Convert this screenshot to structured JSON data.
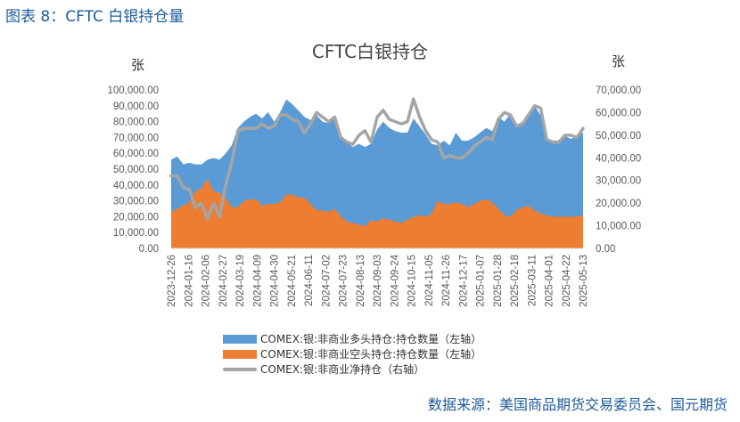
{
  "figure_label": "图表 8：CFTC 白银持仓量",
  "source_text": "数据来源：美国商品期货交易委员会、国元期货",
  "colors": {
    "long": "#5b9bd5",
    "short": "#ed7d31",
    "net": "#a5a5a5",
    "title": "#1f5a9a"
  },
  "chart_data": {
    "type": "area",
    "title": "CFTC白银持仓",
    "left_unit": "张",
    "right_unit": "张",
    "grid": false,
    "legend_position": "bottom",
    "y_left_ticks": [
      "100,000.00",
      "90,000.00",
      "80,000.00",
      "70,000.00",
      "60,000.00",
      "50,000.00",
      "40,000.00",
      "30,000.00",
      "20,000.00",
      "10,000.00",
      "0.00"
    ],
    "y_right_ticks": [
      "70,000.00",
      "60,000.00",
      "50,000.00",
      "40,000.00",
      "30,000.00",
      "20,000.00",
      "10,000.00",
      "0.00"
    ],
    "y_left_lim": [
      0,
      100000
    ],
    "y_right_lim": [
      0,
      70000
    ],
    "x_tick_labels": [
      "2023-12-26",
      "2024-01-16",
      "2024-02-06",
      "2024-02-27",
      "2024-03-19",
      "2024-04-09",
      "2024-04-30",
      "2024-05-21",
      "2024-06-11",
      "2024-07-02",
      "2024-07-23",
      "2024-08-13",
      "2024-09-03",
      "2024-09-24",
      "2024-10-15",
      "2024-11-05",
      "2024-11-26",
      "2024-12-17",
      "2025-01-07",
      "2025-01-28",
      "2025-02-18",
      "2025-03-11",
      "2025-04-01",
      "2025-04-22",
      "2025-05-13"
    ],
    "series": [
      {
        "name": "COMEX:银:非商业多头持仓:持仓数量（左轴）",
        "axis": "left",
        "values": [
          56000,
          58000,
          53000,
          54000,
          53000,
          53000,
          56000,
          57000,
          56000,
          60000,
          65000,
          76000,
          80000,
          83000,
          85000,
          82000,
          86000,
          80000,
          86000,
          94000,
          91000,
          87000,
          83000,
          81000,
          84000,
          80000,
          79000,
          83000,
          70000,
          67000,
          64000,
          66000,
          64000,
          66000,
          75000,
          80000,
          76000,
          74000,
          73000,
          73000,
          82000,
          77000,
          72000,
          66000,
          65000,
          68000,
          65000,
          73000,
          68000,
          68000,
          70000,
          73000,
          76000,
          74000,
          83000,
          80000,
          85000,
          78000,
          80000,
          85000,
          90000,
          84000,
          70000,
          66000,
          67000,
          71000,
          69000,
          71000,
          73000
        ]
      },
      {
        "name": "COMEX:银:非商业空头持仓:持仓数量（左轴）",
        "axis": "left",
        "values": [
          23000,
          25000,
          27000,
          29000,
          36000,
          38000,
          44000,
          36000,
          35000,
          32000,
          26000,
          26000,
          30000,
          31000,
          31000,
          27000,
          28000,
          28000,
          29000,
          34000,
          34000,
          32000,
          32000,
          28000,
          24000,
          24000,
          23000,
          25000,
          20000,
          17000,
          16000,
          15000,
          14000,
          18000,
          17000,
          19000,
          18000,
          17000,
          16000,
          18000,
          20000,
          21000,
          20000,
          22000,
          30000,
          28000,
          28000,
          29000,
          28000,
          26000,
          28000,
          30000,
          31000,
          29000,
          25000,
          21000,
          20000,
          24000,
          26000,
          27000,
          24000,
          22000,
          21000,
          20000,
          20000,
          20000,
          20000,
          20000,
          21000
        ]
      },
      {
        "name": "COMEX:银:非商业净持仓（右轴）",
        "axis": "right",
        "values": [
          32000,
          32000,
          27000,
          26000,
          18000,
          20000,
          13000,
          20000,
          14000,
          28000,
          38000,
          52000,
          53000,
          53000,
          53000,
          55000,
          53000,
          54000,
          59000,
          59000,
          57000,
          56000,
          51000,
          55000,
          60000,
          58000,
          56000,
          58000,
          49000,
          47000,
          46000,
          50000,
          52000,
          47000,
          58000,
          61000,
          57000,
          56000,
          55000,
          56000,
          66000,
          58000,
          52000,
          48000,
          47000,
          40000,
          41000,
          40000,
          40000,
          42000,
          45000,
          47000,
          49000,
          48000,
          57000,
          60000,
          59000,
          54000,
          55000,
          59000,
          63000,
          62000,
          48000,
          47000,
          47000,
          50000,
          50000,
          49000,
          53000
        ]
      }
    ]
  }
}
